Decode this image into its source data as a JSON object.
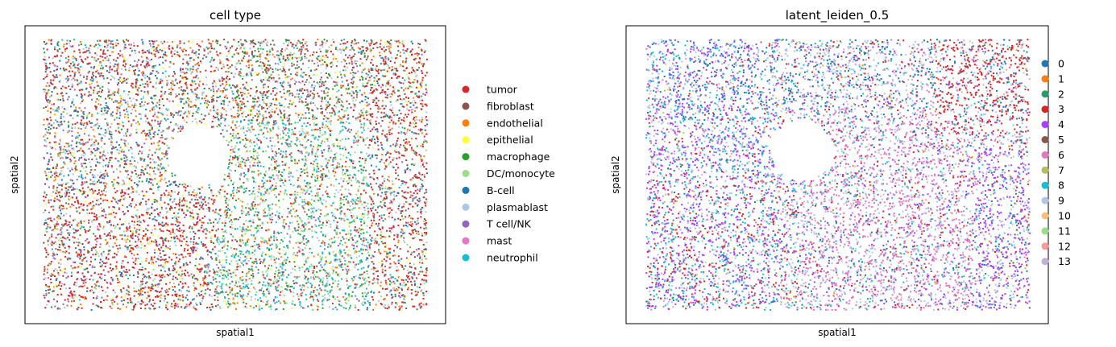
{
  "chart_data": [
    {
      "type": "scatter",
      "title": "cell type",
      "xlabel": "spatial1",
      "ylabel": "spatial2",
      "x_ticks": [],
      "y_ticks": [],
      "grid": false,
      "legend_position": "right",
      "legend": [
        {
          "label": "tumor",
          "color": "#d62728"
        },
        {
          "label": "fibroblast",
          "color": "#8c564b"
        },
        {
          "label": "endothelial",
          "color": "#ff7f0e"
        },
        {
          "label": "epithelial",
          "color": "#ffff33"
        },
        {
          "label": "macrophage",
          "color": "#2ca02c"
        },
        {
          "label": "DC/monocyte",
          "color": "#98df8a"
        },
        {
          "label": "B-cell",
          "color": "#1f77b4"
        },
        {
          "label": "plasmablast",
          "color": "#aec7e8"
        },
        {
          "label": "T cell/NK",
          "color": "#9467bd"
        },
        {
          "label": "mast",
          "color": "#e377c2"
        },
        {
          "label": "neutrophil",
          "color": "#17becf"
        }
      ]
    },
    {
      "type": "scatter",
      "title": "latent_leiden_0.5",
      "xlabel": "spatial1",
      "ylabel": "spatial2",
      "x_ticks": [],
      "y_ticks": [],
      "grid": false,
      "legend_position": "right",
      "legend": [
        {
          "label": "0",
          "color": "#1f77b4"
        },
        {
          "label": "1",
          "color": "#ff7f0e"
        },
        {
          "label": "2",
          "color": "#279e68"
        },
        {
          "label": "3",
          "color": "#d62728"
        },
        {
          "label": "4",
          "color": "#aa40fc"
        },
        {
          "label": "5",
          "color": "#8c564b"
        },
        {
          "label": "6",
          "color": "#e377c2"
        },
        {
          "label": "7",
          "color": "#b5bd61"
        },
        {
          "label": "8",
          "color": "#17becf"
        },
        {
          "label": "9",
          "color": "#aec7e8"
        },
        {
          "label": "10",
          "color": "#ffbb78"
        },
        {
          "label": "11",
          "color": "#98df8a"
        },
        {
          "label": "12",
          "color": "#ff9896"
        },
        {
          "label": "13",
          "color": "#c5b0d5"
        }
      ]
    }
  ]
}
